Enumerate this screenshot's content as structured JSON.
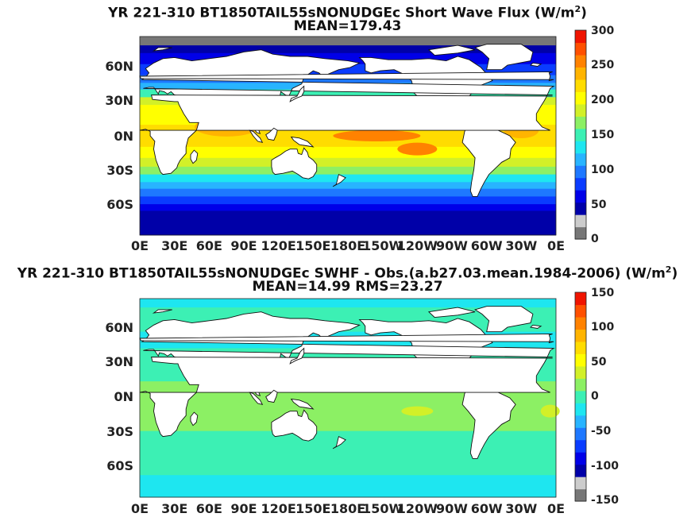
{
  "panels": [
    {
      "title_lines": [
        "YR 221-310 BT1850TAIL55sNONUDGEc  Short Wave Flux (W/m",
        "2",
        ")"
      ],
      "subtitle": "MEAN=179.43",
      "colorbar_ticks": [
        "300",
        "250",
        "200",
        "150",
        "100",
        "50",
        "0"
      ],
      "colorbar_range": [
        0,
        300
      ],
      "field": "absolute"
    },
    {
      "title_lines": [
        "YR 221-310 BT1850TAIL55sNONUDGEc SWHF - Obs.(a.b27.03.mean.1984-2006) (W/m",
        "2",
        ")"
      ],
      "subtitle": "MEAN=14.99 RMS=23.27",
      "colorbar_ticks": [
        "150",
        "100",
        "50",
        "0",
        "-50",
        "-100",
        "-150"
      ],
      "colorbar_range": [
        -150,
        150
      ],
      "field": "difference"
    }
  ],
  "lat_labels": [
    "60N",
    "30N",
    "0N",
    "30S",
    "60S"
  ],
  "lon_labels": [
    "0E",
    "30E",
    "60E",
    "90E",
    "120E",
    "150E",
    "180E",
    "150W",
    "120W",
    "90W",
    "60W",
    "30W",
    "0E"
  ],
  "colormap": [
    "#777777",
    "#cccccc",
    "#0000a8",
    "#0000e8",
    "#0a3cff",
    "#1e78ff",
    "#28b4ff",
    "#1ee6f0",
    "#3cf0b4",
    "#8cf064",
    "#d2f028",
    "#ffff00",
    "#ffdc00",
    "#ffb400",
    "#ff8200",
    "#ff5000",
    "#f01400"
  ],
  "land_color": "#ffffff"
}
